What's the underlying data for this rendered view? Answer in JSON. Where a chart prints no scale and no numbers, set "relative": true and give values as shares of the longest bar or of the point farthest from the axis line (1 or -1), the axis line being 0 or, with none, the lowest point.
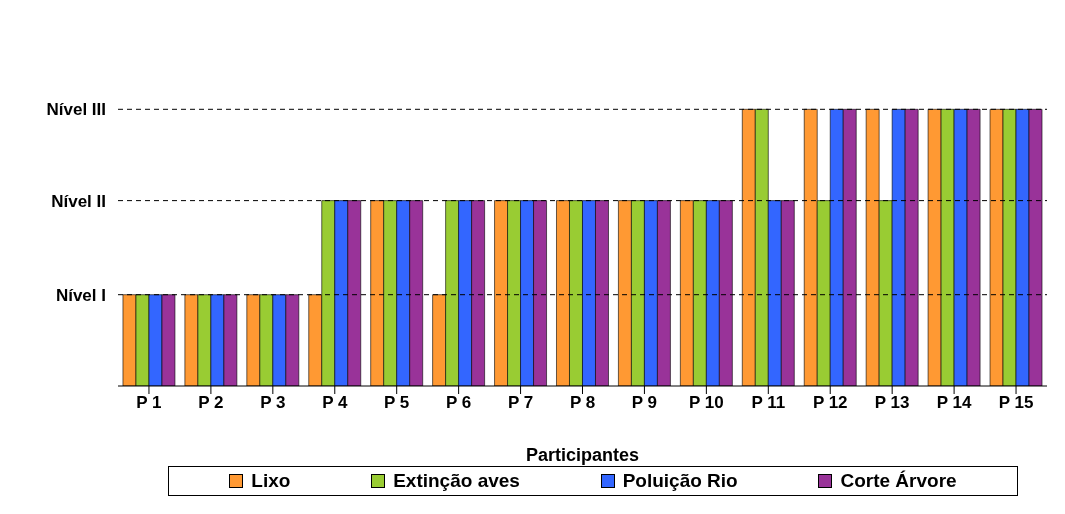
{
  "chart_data": {
    "type": "bar",
    "xlabel": "Participantes",
    "relative": true,
    "categories": [
      "P 1",
      "P 2",
      "P 3",
      "P 4",
      "P 5",
      "P 6",
      "P 7",
      "P 8",
      "P 9",
      "P 10",
      "P 11",
      "P 12",
      "P 13",
      "P 14",
      "P 15"
    ],
    "series": [
      {
        "name": "Lixo",
        "color": "#ff9933",
        "values": [
          0.33,
          0.33,
          0.33,
          0.33,
          0.67,
          0.33,
          0.67,
          0.67,
          0.67,
          0.67,
          1,
          1,
          1,
          1,
          1
        ]
      },
      {
        "name": "Extinção aves",
        "color": "#99cc33",
        "values": [
          0.33,
          0.33,
          0.33,
          0.67,
          0.67,
          0.67,
          0.67,
          0.67,
          0.67,
          0.67,
          1,
          0.67,
          0.67,
          1,
          1
        ]
      },
      {
        "name": "Poluição Rio",
        "color": "#3366ff",
        "values": [
          0.33,
          0.33,
          0.33,
          0.67,
          0.67,
          0.67,
          0.67,
          0.67,
          0.67,
          0.67,
          0.67,
          1,
          1,
          1,
          1
        ]
      },
      {
        "name": "Corte Árvore",
        "color": "#993399",
        "values": [
          0.33,
          0.33,
          0.33,
          0.67,
          0.67,
          0.67,
          0.67,
          0.67,
          0.67,
          0.67,
          0.67,
          1,
          1,
          1,
          1
        ]
      }
    ],
    "ref_lines": [
      {
        "axis": "y",
        "value": 0.33,
        "label": "Nível I",
        "line_style": "dashed",
        "color": "#000000"
      },
      {
        "axis": "y",
        "value": 0.67,
        "label": "Nível II",
        "line_style": "dashed",
        "color": "#000000"
      },
      {
        "axis": "y",
        "value": 1,
        "label": "Nível III",
        "line_style": "dashed",
        "color": "#000000"
      }
    ],
    "legend": "bottom"
  }
}
